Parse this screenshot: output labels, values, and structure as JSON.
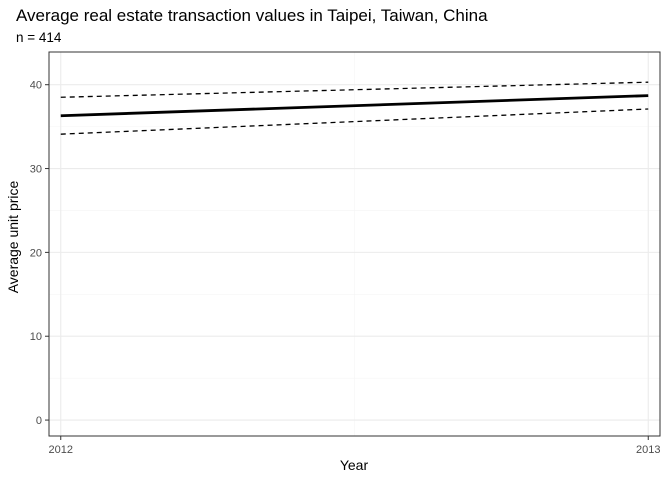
{
  "chart_data": {
    "type": "line",
    "title": "Average real estate transaction values in Taipei, Taiwan, China",
    "subtitle": "n = 414",
    "xlabel": "Year",
    "ylabel": "Average unit price",
    "x": [
      2012,
      2013
    ],
    "xticks": [
      "2012",
      "2013"
    ],
    "yticks": [
      0,
      10,
      20,
      30,
      40
    ],
    "xlim": [
      2011.98,
      2013.02
    ],
    "ylim": [
      -1.9,
      43.9
    ],
    "grid": true,
    "series": [
      {
        "role": "fit",
        "values": [
          36.3,
          38.7
        ],
        "color": "#000000",
        "linestyle": "solid"
      },
      {
        "role": "upper-bound",
        "values": [
          38.5,
          40.3
        ],
        "color": "#000000",
        "linestyle": "dashed"
      },
      {
        "role": "lower-bound",
        "values": [
          34.1,
          37.1
        ],
        "color": "#000000",
        "linestyle": "dashed"
      }
    ],
    "colors": {
      "panel_border": "#333333",
      "grid_major": "#ebebeb",
      "grid_minor": "#f5f5f5",
      "tick_text": "#4d4d4d",
      "tick_mark": "#333333"
    }
  }
}
